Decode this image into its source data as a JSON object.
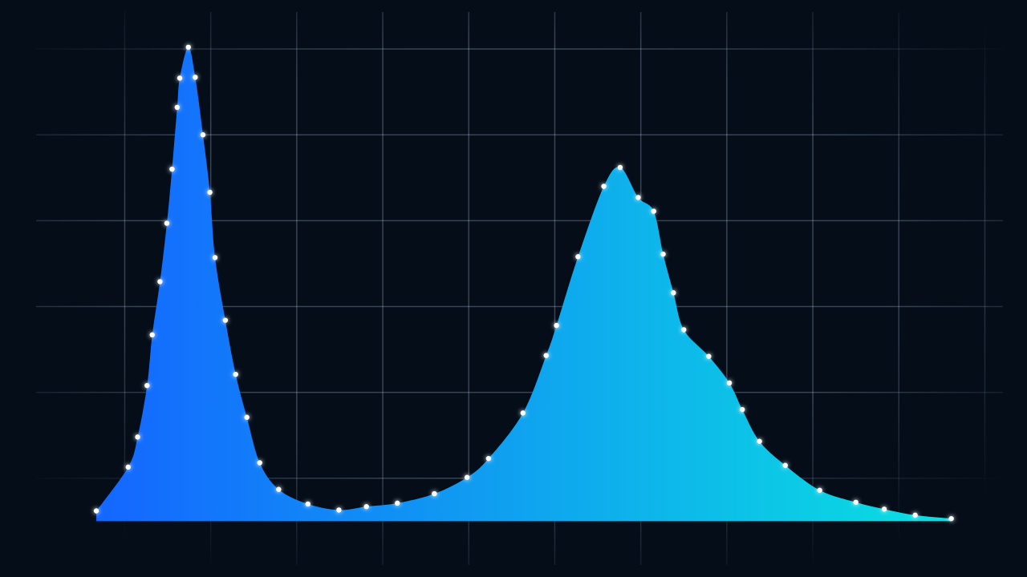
{
  "chart_data": {
    "type": "area",
    "x": [
      0.67,
      1.04,
      1.15,
      1.26,
      1.32,
      1.41,
      1.49,
      1.55,
      1.61,
      1.64,
      1.74,
      1.82,
      1.91,
      1.99,
      2.05,
      2.17,
      2.29,
      2.42,
      2.57,
      2.79,
      3.13,
      3.49,
      3.81,
      4.17,
      4.6,
      4.98,
      5.23,
      5.63,
      5.9,
      6.02,
      6.27,
      6.57,
      6.76,
      6.97,
      7.15,
      7.26,
      7.38,
      7.5,
      7.79,
      8.03,
      8.18,
      8.38,
      8.68,
      9.08,
      9.5,
      9.83,
      10.19,
      10.61
    ],
    "values": [
      0.12,
      0.63,
      0.98,
      1.58,
      2.17,
      2.79,
      3.47,
      4.1,
      4.82,
      5.16,
      5.52,
      5.17,
      4.5,
      3.83,
      3.07,
      2.34,
      1.71,
      1.21,
      0.68,
      0.37,
      0.2,
      0.13,
      0.17,
      0.21,
      0.32,
      0.51,
      0.73,
      1.26,
      1.93,
      2.28,
      3.08,
      3.9,
      4.12,
      3.77,
      3.61,
      3.11,
      2.66,
      2.23,
      1.92,
      1.61,
      1.3,
      0.93,
      0.65,
      0.36,
      0.22,
      0.14,
      0.07,
      0.03
    ],
    "xlim": [
      -0.45,
      11.49
    ],
    "ylim": [
      -0.65,
      6.07
    ],
    "xticks": [
      1,
      2,
      3,
      4,
      5,
      6,
      7,
      8,
      9,
      10,
      11
    ],
    "yticks": [
      0.5,
      1.5,
      2.5,
      3.5,
      4.5,
      5.5
    ],
    "grid": true,
    "gradient": [
      "#1466ff",
      "#0ae0e0"
    ],
    "marker_color": "#ffffff"
  }
}
